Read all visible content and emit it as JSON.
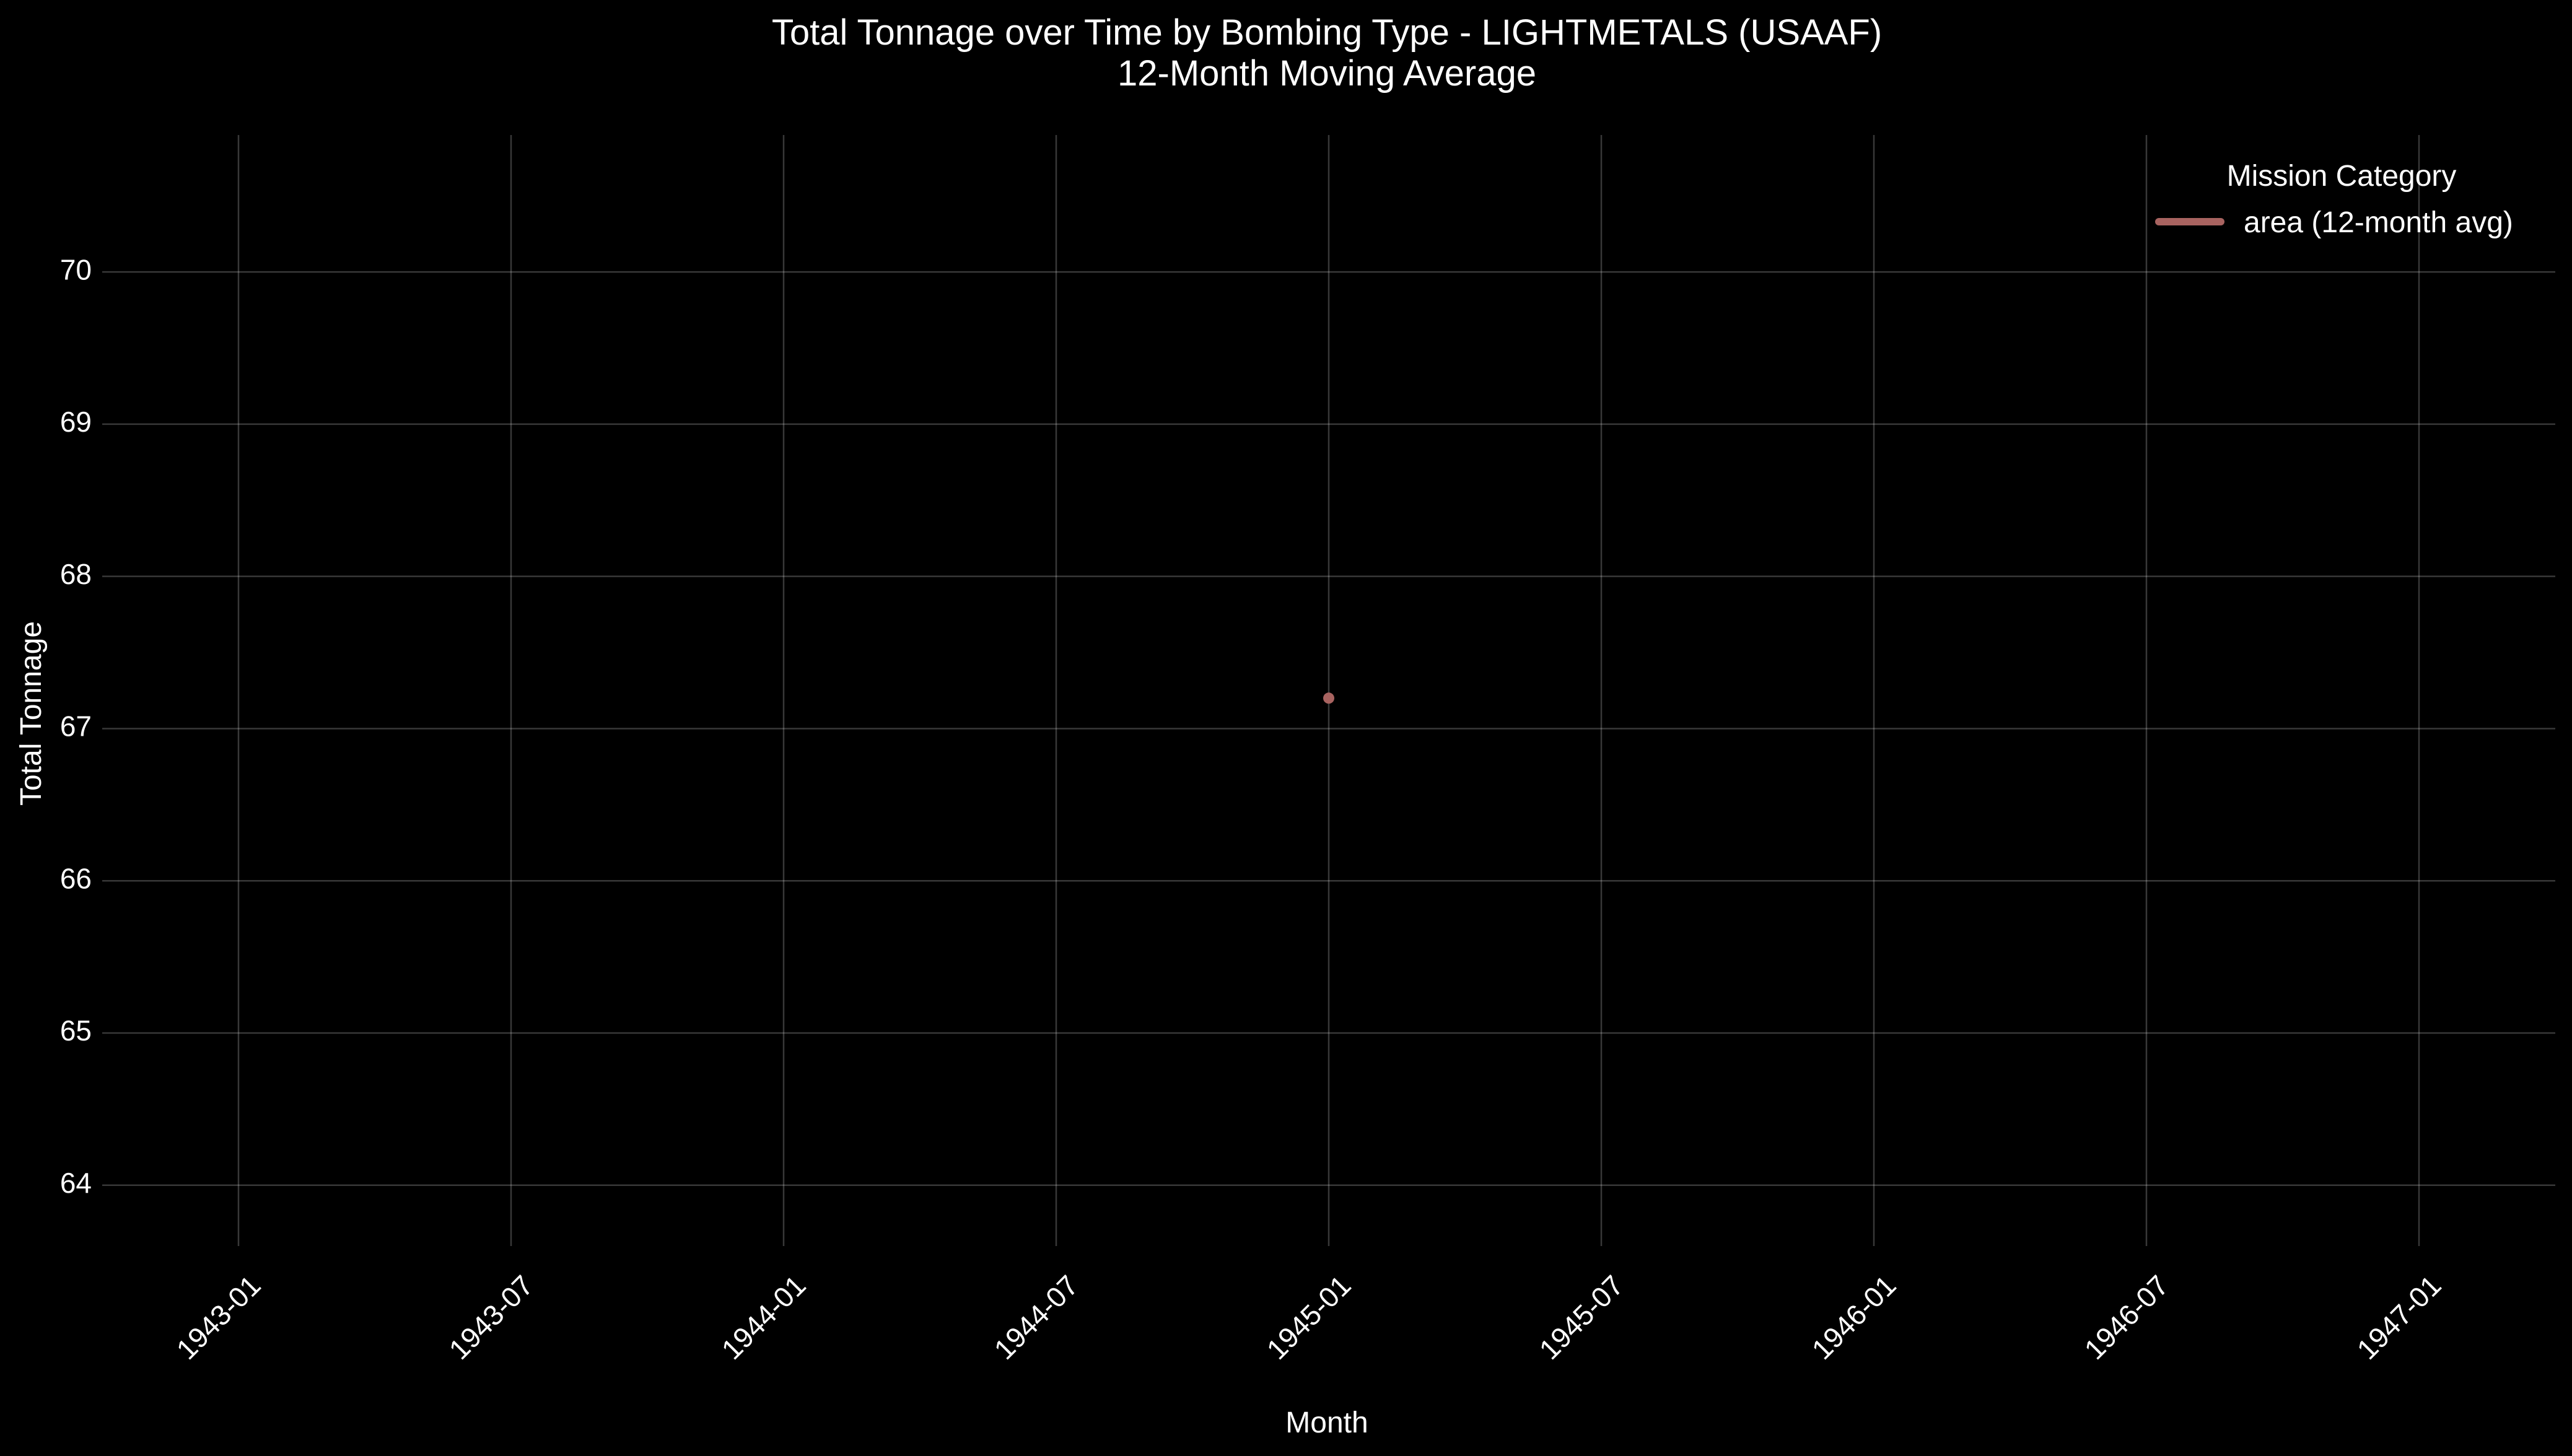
{
  "chart_data": {
    "type": "line",
    "title": "Total Tonnage over Time by Bombing Type - LIGHTMETALS (USAAF)",
    "subtitle": "12-Month Moving Average",
    "xlabel": "Month",
    "ylabel": "Total Tonnage",
    "x_ticks": [
      "1943-01",
      "1943-07",
      "1944-01",
      "1944-07",
      "1945-01",
      "1945-07",
      "1946-01",
      "1946-07",
      "1947-01"
    ],
    "y_ticks": [
      64,
      65,
      66,
      67,
      68,
      69,
      70
    ],
    "xlim": [
      "1942-10",
      "1947-04"
    ],
    "ylim": [
      63.6,
      70.9
    ],
    "grid": true,
    "legend": {
      "title": "Mission Category",
      "placement": "top-right"
    },
    "series": [
      {
        "name": "area (12-month avg)",
        "color": "#a86360",
        "points": [
          {
            "x": "1945-01",
            "y": 67.2
          }
        ]
      }
    ]
  }
}
